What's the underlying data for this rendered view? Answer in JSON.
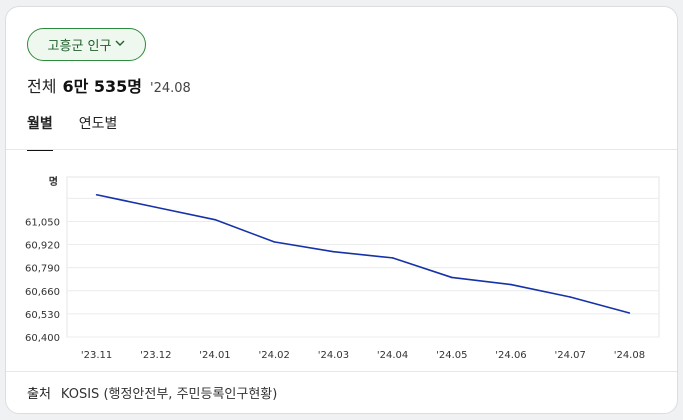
{
  "region_selector": {
    "label": "고흥군 인구"
  },
  "summary": {
    "label": "전체",
    "value": "6만 535명",
    "date": "'24.08"
  },
  "tabs": [
    {
      "label": "월별",
      "active": true
    },
    {
      "label": "연도별",
      "active": false
    }
  ],
  "footer": {
    "source_label": "출처",
    "source_text": "KOSIS (행정안전부, 주민등록인구현황)"
  },
  "colors": {
    "line": "#1532a8",
    "accent": "#2e8b3d"
  },
  "chart_data": {
    "type": "line",
    "ylabel": "명",
    "categories": [
      "'23.11",
      "'23.12",
      "'24.01",
      "'24.02",
      "'24.03",
      "'24.04",
      "'24.05",
      "'24.06",
      "'24.07",
      "'24.08"
    ],
    "series": [
      {
        "values": [
          61200,
          61130,
          61060,
          60935,
          60880,
          60845,
          60735,
          60695,
          60625,
          60535
        ]
      }
    ],
    "yticks": [
      60400,
      60530,
      60660,
      60790,
      60920,
      61050
    ],
    "ytick_labels": [
      "60,400",
      "60,530",
      "60,660",
      "60,790",
      "60,920",
      "61,050"
    ],
    "ylim": [
      60400,
      61300
    ],
    "grid": true
  }
}
